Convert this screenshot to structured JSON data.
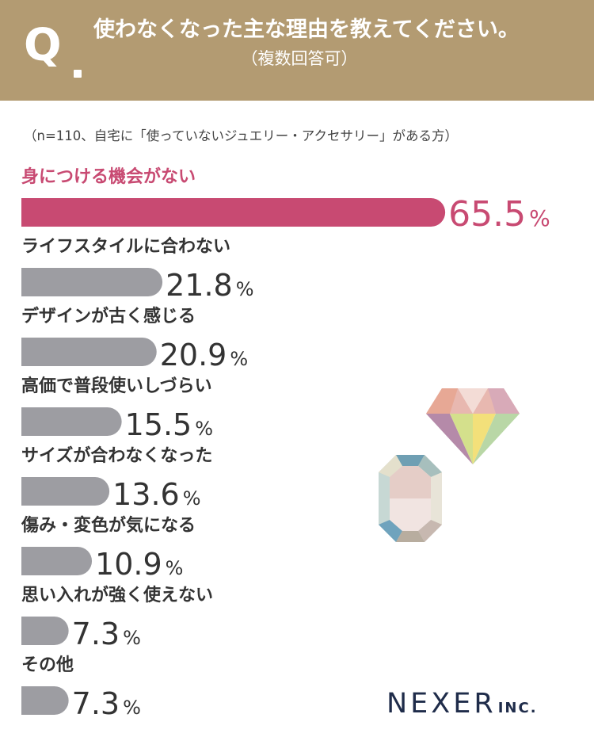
{
  "header": {
    "q_mark": "Q",
    "title": "使わなくなった主な理由を教えてください。",
    "subtitle": "（複数回答可）",
    "bg_color": "#b39b72"
  },
  "note": "（n=110、自宅に「使っていないジュエリー・アクセサリー」がある方）",
  "chart_data": {
    "type": "bar",
    "orientation": "horizontal",
    "unit": "%",
    "categories": [
      "身につける機会がない",
      "ライフスタイルに合わない",
      "デザインが古く感じる",
      "高価で普段使いしづらい",
      "サイズが合わなくなった",
      "傷み・変色が気になる",
      "思い入れが強く使えない",
      "その他"
    ],
    "values": [
      65.5,
      21.8,
      20.9,
      15.5,
      13.6,
      10.9,
      7.3,
      7.3
    ],
    "value_labels": [
      "65.5",
      "21.8",
      "20.9",
      "15.5",
      "13.6",
      "10.9",
      "7.3",
      "7.3"
    ],
    "highlight_color": "#c84a72",
    "bar_color": "#9d9da2"
  },
  "decor": {
    "gems": [
      "diamond-icon",
      "gem-icon"
    ]
  },
  "logo": {
    "main": "NEXER",
    "suffix": "INC."
  }
}
